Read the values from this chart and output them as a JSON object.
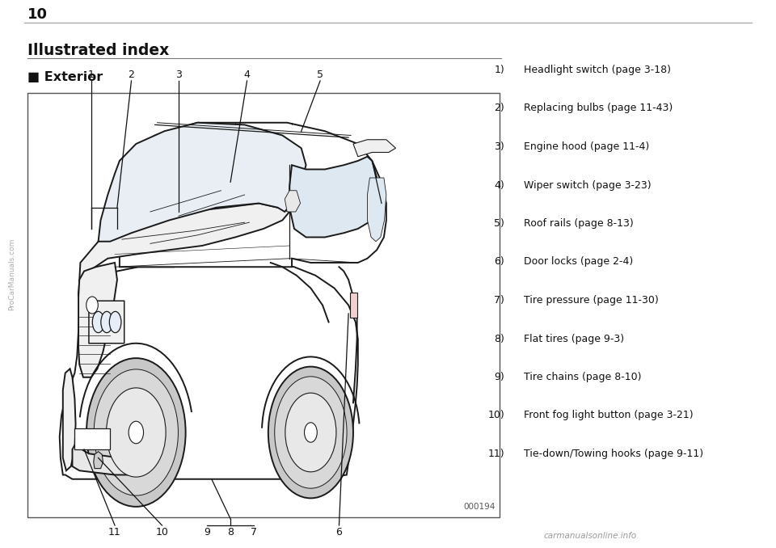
{
  "page_number": "10",
  "title": "Illustrated index",
  "section": "■ Exterior",
  "image_code": "000194",
  "bg_color": "#ffffff",
  "list_items_col1": [
    "1)",
    "2)",
    "3)",
    "4)",
    "5)",
    "6)",
    "7)",
    "8)",
    "9)",
    "10)",
    "11)"
  ],
  "list_items_col2": [
    "Headlight switch (page 3-18)",
    "Replacing bulbs (page 11-43)",
    "Engine hood (page 11-4)",
    "Wiper switch (page 3-23)",
    "Roof rails (page 8-13)",
    "Door locks (page 2-4)",
    "Tire pressure (page 11-30)",
    "Flat tires (page 9-3)",
    "Tire chains (page 8-10)",
    "Front fog light button (page 3-21)",
    "Tie-down/Towing hooks (page 9-11)"
  ],
  "watermark_text": "ProCarManuals.com",
  "footer_text": "carmanualsonline.info",
  "separator_color": "#bbbbbb",
  "list_font_size": 9.0,
  "title_font_size": 13.5,
  "section_font_size": 11.5,
  "page_num_font_size": 13,
  "figw": 9.6,
  "figh": 6.78
}
